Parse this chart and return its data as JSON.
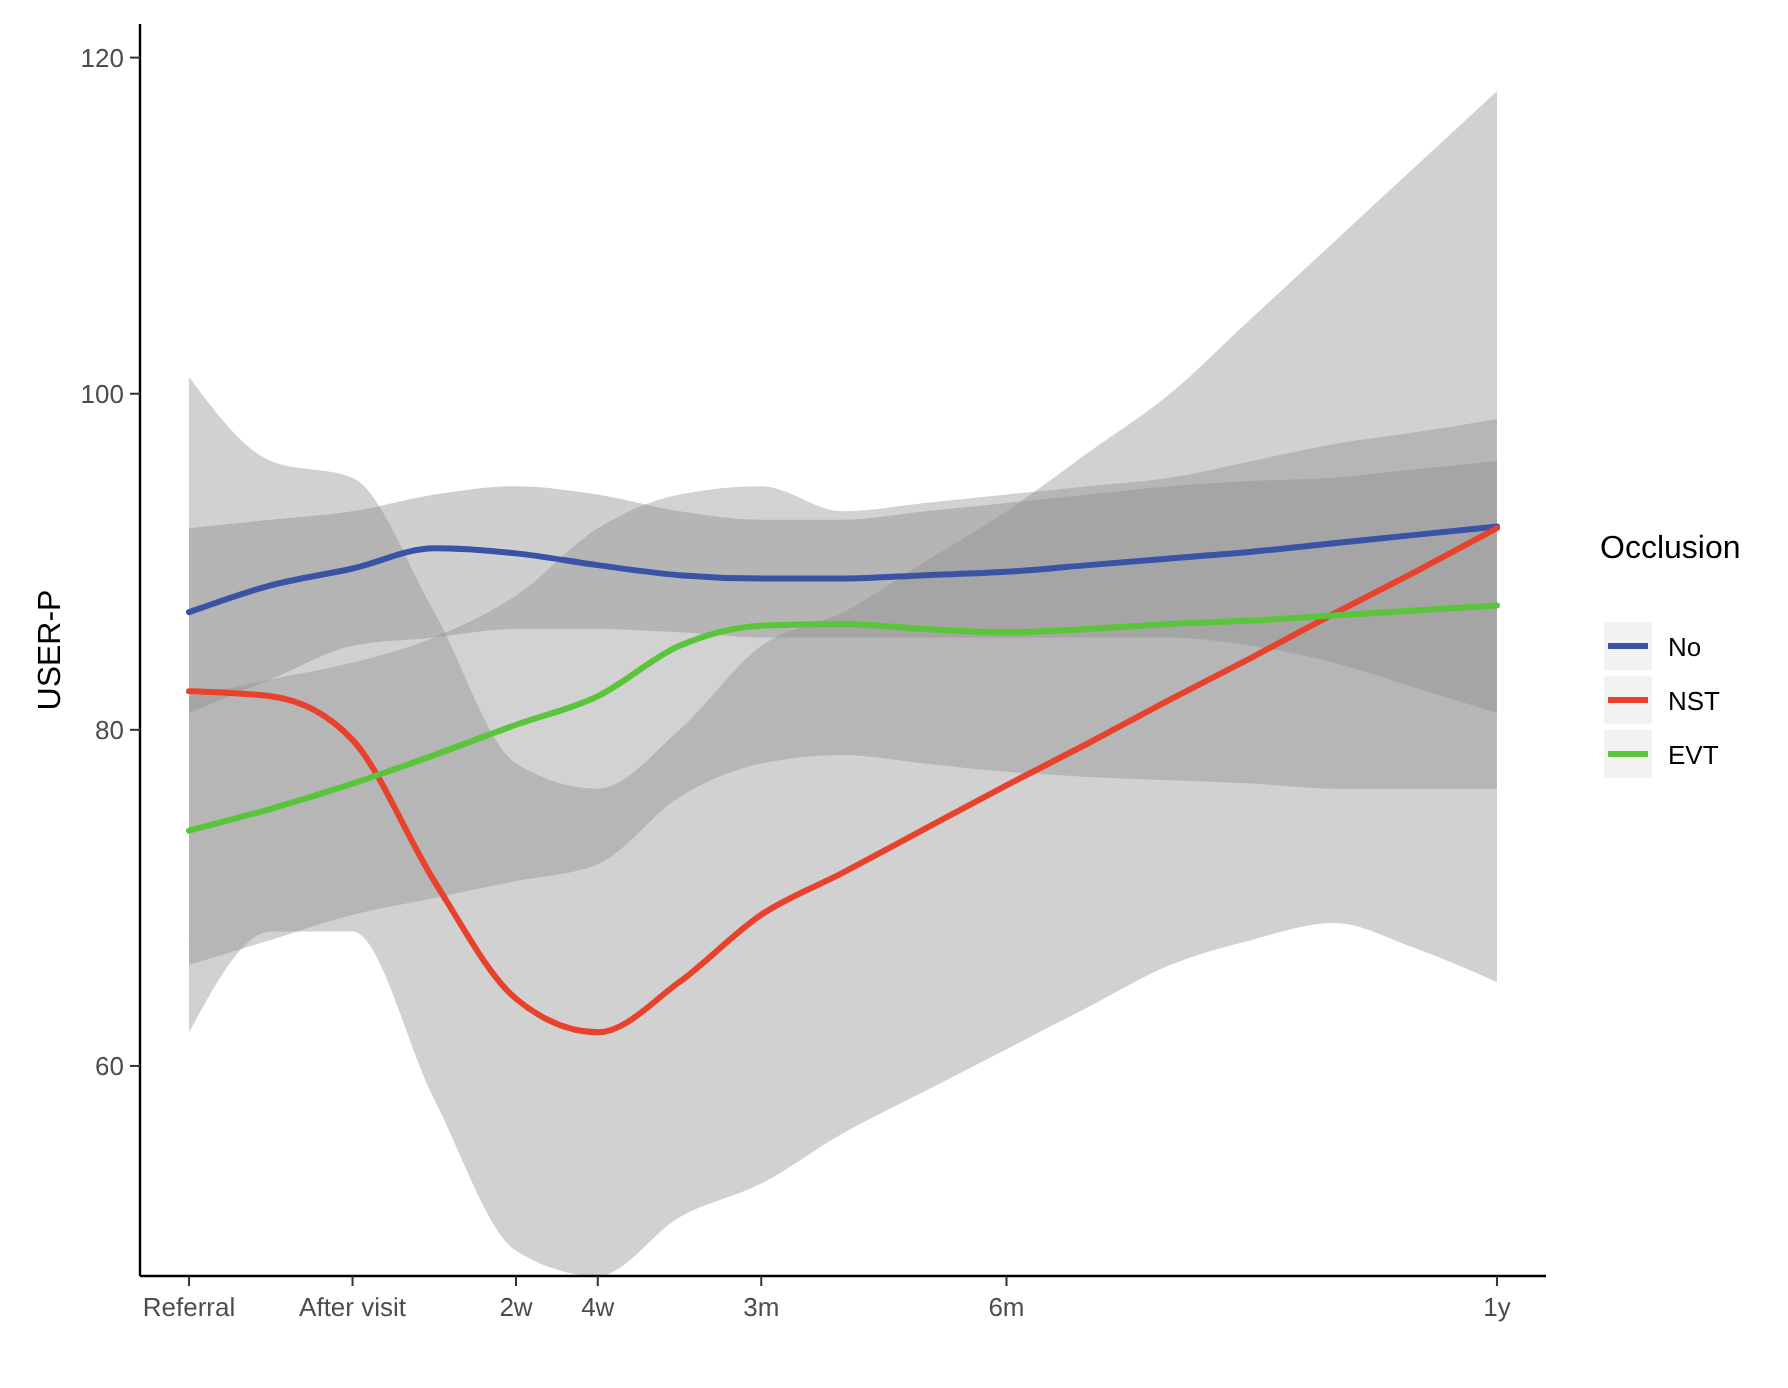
{
  "chart_data": {
    "type": "line",
    "ylabel": "USER-P",
    "legend_title": "Occlusion",
    "legend": "right",
    "marker": "none",
    "line_style": "solid",
    "grid": false,
    "categories": [
      "Referral",
      null,
      "After visit",
      null,
      "2w",
      "4w",
      null,
      "3m",
      null,
      null,
      "6m",
      null,
      null,
      null,
      null,
      null,
      "1y"
    ],
    "ylim": [
      47.5,
      122
    ],
    "yticks": [
      60,
      80,
      100,
      120
    ],
    "series": [
      {
        "name": "No",
        "color": "#3a53a4",
        "values": [
          87,
          88.6,
          89.6,
          90.8,
          90.5,
          89.8,
          89.2,
          89,
          89,
          89.2,
          89.4,
          89.8,
          90.2,
          90.6,
          91.1,
          91.6,
          92.1
        ],
        "lower": [
          81,
          83,
          85,
          85.5,
          86,
          86,
          85.8,
          85.5,
          85.5,
          85.5,
          85.5,
          85.5,
          85.5,
          85,
          84,
          82.5,
          81
        ],
        "upper": [
          92,
          92.5,
          93,
          94,
          94.5,
          94,
          93,
          92.5,
          92.5,
          93,
          93.5,
          94,
          94.5,
          94.8,
          95,
          95.5,
          96
        ]
      },
      {
        "name": "NST",
        "color": "#e8412c",
        "values": [
          82.3,
          82,
          79.4,
          71,
          64,
          62,
          65,
          69,
          71.5,
          74.1,
          76.7,
          79.2,
          81.8,
          84.3,
          86.9,
          89.4,
          92
        ],
        "lower": [
          62,
          68,
          68,
          58,
          49,
          47.5,
          51,
          53,
          56,
          58.5,
          61,
          63.5,
          66,
          67.5,
          68.5,
          67,
          65
        ],
        "upper": [
          101,
          96,
          95,
          87,
          78,
          76.5,
          80,
          85,
          87,
          90,
          93,
          96.5,
          100,
          104.5,
          109,
          113.5,
          118
        ]
      },
      {
        "name": "EVT",
        "color": "#5ac53a",
        "values": [
          74,
          75.3,
          76.8,
          78.5,
          80.3,
          82,
          85,
          86.2,
          86.3,
          86,
          85.8,
          86,
          86.3,
          86.5,
          86.8,
          87.1,
          87.4
        ],
        "lower": [
          66,
          67.5,
          69,
          70,
          71,
          72,
          76,
          78,
          78.5,
          78,
          77.5,
          77.2,
          77,
          76.8,
          76.5,
          76.5,
          76.5
        ],
        "upper": [
          82,
          83,
          84,
          85.5,
          88,
          92,
          94,
          94.5,
          93,
          93.5,
          94,
          94.5,
          95,
          96,
          97,
          97.7,
          98.5
        ]
      }
    ]
  }
}
